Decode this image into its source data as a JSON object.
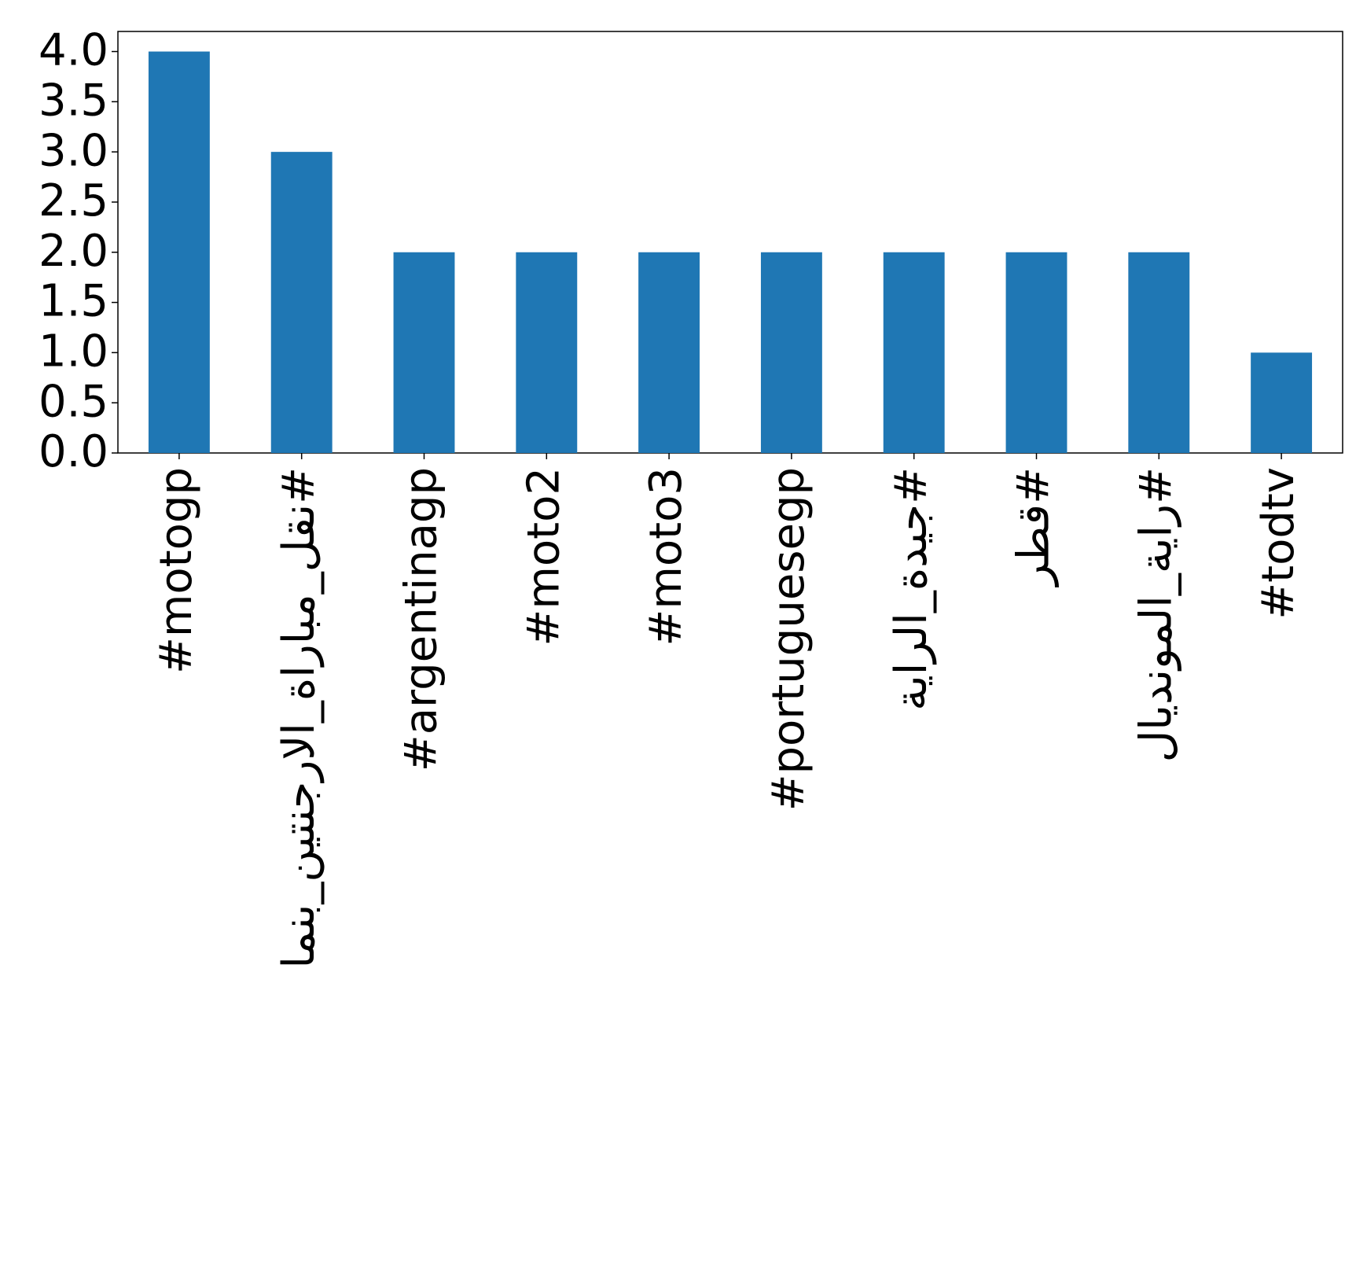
{
  "chart_data": {
    "type": "bar",
    "categories": [
      "#motogp",
      "#نقل_مباراة_الارجنتين_بنما",
      "#argentinagp",
      "#moto2",
      "#moto3",
      "#portuguesegp",
      "#جيدة_الراية",
      "#قطر",
      "#راية_المونديال",
      "#todtv"
    ],
    "values": [
      4,
      3,
      2,
      2,
      2,
      2,
      2,
      2,
      2,
      1
    ],
    "color": "#1f77b4",
    "ylim": [
      0,
      4.2
    ],
    "yticks": [
      {
        "value": 0,
        "label": "0.0"
      },
      {
        "value": 0.5,
        "label": "0.5"
      },
      {
        "value": 1,
        "label": "1.0"
      },
      {
        "value": 1.5,
        "label": "1.5"
      },
      {
        "value": 2,
        "label": "2.0"
      },
      {
        "value": 2.5,
        "label": "2.5"
      },
      {
        "value": 3,
        "label": "3.0"
      },
      {
        "value": 3.5,
        "label": "3.5"
      },
      {
        "value": 4,
        "label": "4.0"
      }
    ],
    "grid": false
  }
}
